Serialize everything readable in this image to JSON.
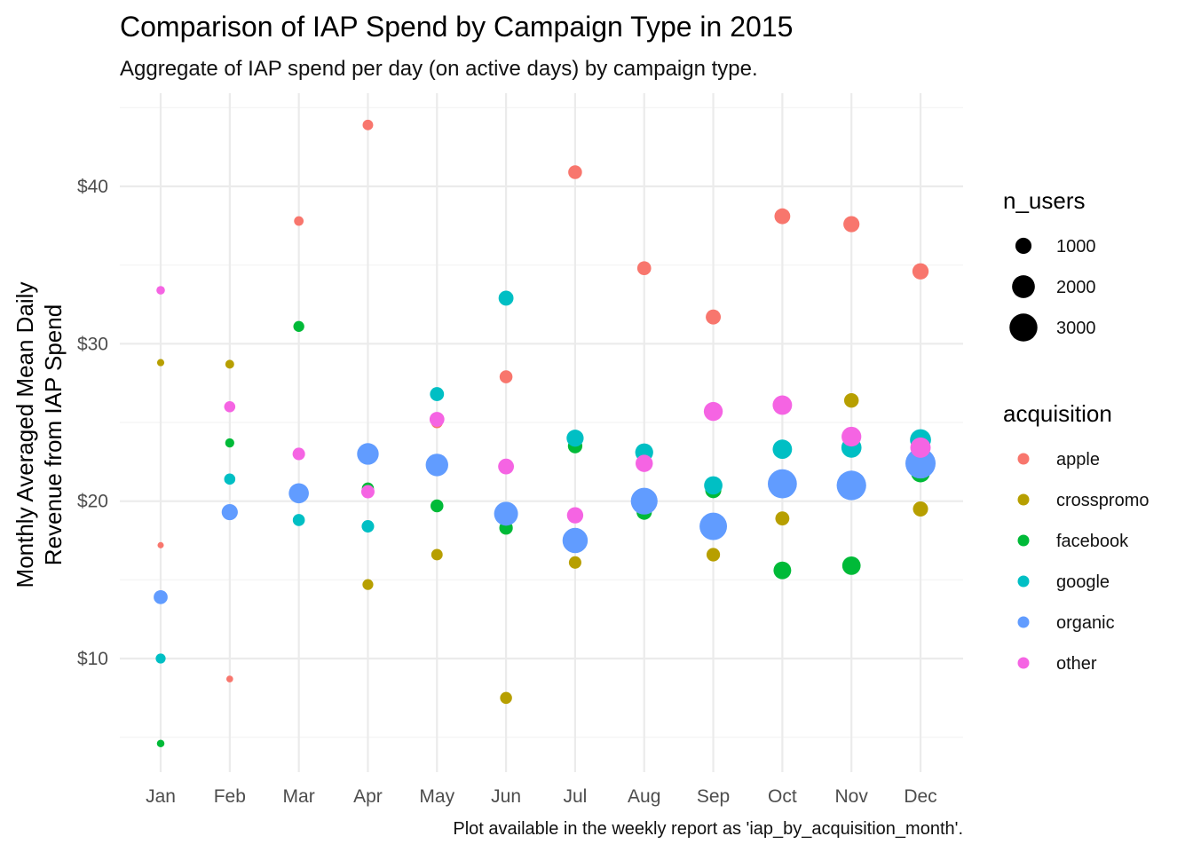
{
  "chart_data": {
    "type": "scatter",
    "title": "Comparison of IAP Spend by Campaign Type in 2015",
    "subtitle": "Aggregate of IAP spend per day (on active days) by campaign type.",
    "caption": "Plot available in the weekly report as 'iap_by_acquisition_month'.",
    "ylabel_line1": "Monthly Averaged Mean Daily",
    "ylabel_line2": "Revenue from IAP Spend",
    "xlabel": "",
    "categories": [
      "Jan",
      "Feb",
      "Mar",
      "Apr",
      "May",
      "Jun",
      "Jul",
      "Aug",
      "Sep",
      "Oct",
      "Nov",
      "Dec"
    ],
    "ylim": [
      3.5,
      45
    ],
    "y_ticks": [
      10,
      20,
      30,
      40
    ],
    "y_tick_labels": [
      "$10",
      "$20",
      "$30",
      "$40"
    ],
    "grid": true,
    "legend_placement": "right",
    "size_legend": {
      "title": "n_users",
      "values": [
        1000,
        2000,
        3000
      ],
      "labels": [
        "1000",
        "2000",
        "3000"
      ]
    },
    "color_legend": {
      "title": "acquisition"
    },
    "series": [
      {
        "name": "apple",
        "color": "#F8766D",
        "values": [
          17.2,
          8.7,
          37.8,
          43.9,
          25.0,
          27.9,
          40.9,
          34.8,
          31.7,
          38.1,
          37.6,
          34.6
        ],
        "n_users": [
          150,
          180,
          350,
          430,
          520,
          640,
          730,
          740,
          870,
          960,
          1000,
          1020
        ]
      },
      {
        "name": "crosspromo",
        "color": "#B79F00",
        "values": [
          28.8,
          28.7,
          31.1,
          14.7,
          16.6,
          7.5,
          16.1,
          19.3,
          16.6,
          18.9,
          26.4,
          19.5
        ],
        "n_users": [
          200,
          300,
          380,
          450,
          500,
          550,
          600,
          650,
          700,
          760,
          820,
          880
        ]
      },
      {
        "name": "facebook",
        "color": "#00BA38",
        "values": [
          4.6,
          23.7,
          31.1,
          20.8,
          19.7,
          18.3,
          23.5,
          19.3,
          20.7,
          15.6,
          15.9,
          21.8
        ],
        "n_users": [
          220,
          320,
          460,
          560,
          640,
          700,
          800,
          900,
          1000,
          1200,
          1300,
          1400
        ]
      },
      {
        "name": "google",
        "color": "#00BFC4",
        "values": [
          10.0,
          21.4,
          18.8,
          18.4,
          26.8,
          32.9,
          24.0,
          23.1,
          21.0,
          23.3,
          23.4,
          23.9
        ],
        "n_users": [
          380,
          480,
          560,
          600,
          760,
          860,
          1120,
          1240,
          1300,
          1440,
          1560,
          1700
        ]
      },
      {
        "name": "organic",
        "color": "#619CFF",
        "values": [
          13.9,
          19.3,
          20.5,
          23.0,
          22.3,
          19.2,
          17.5,
          20.0,
          18.4,
          21.1,
          21.0,
          22.4
        ],
        "n_users": [
          750,
          1000,
          1550,
          1800,
          1950,
          2200,
          2450,
          2750,
          2900,
          3250,
          3350,
          3500
        ]
      },
      {
        "name": "other",
        "color": "#F564E3",
        "values": [
          33.4,
          26.0,
          23.0,
          20.6,
          25.2,
          22.2,
          19.1,
          22.4,
          25.7,
          26.1,
          24.1,
          23.4
        ],
        "n_users": [
          280,
          480,
          600,
          680,
          850,
          960,
          1020,
          1150,
          1380,
          1450,
          1500,
          1600
        ]
      }
    ]
  }
}
